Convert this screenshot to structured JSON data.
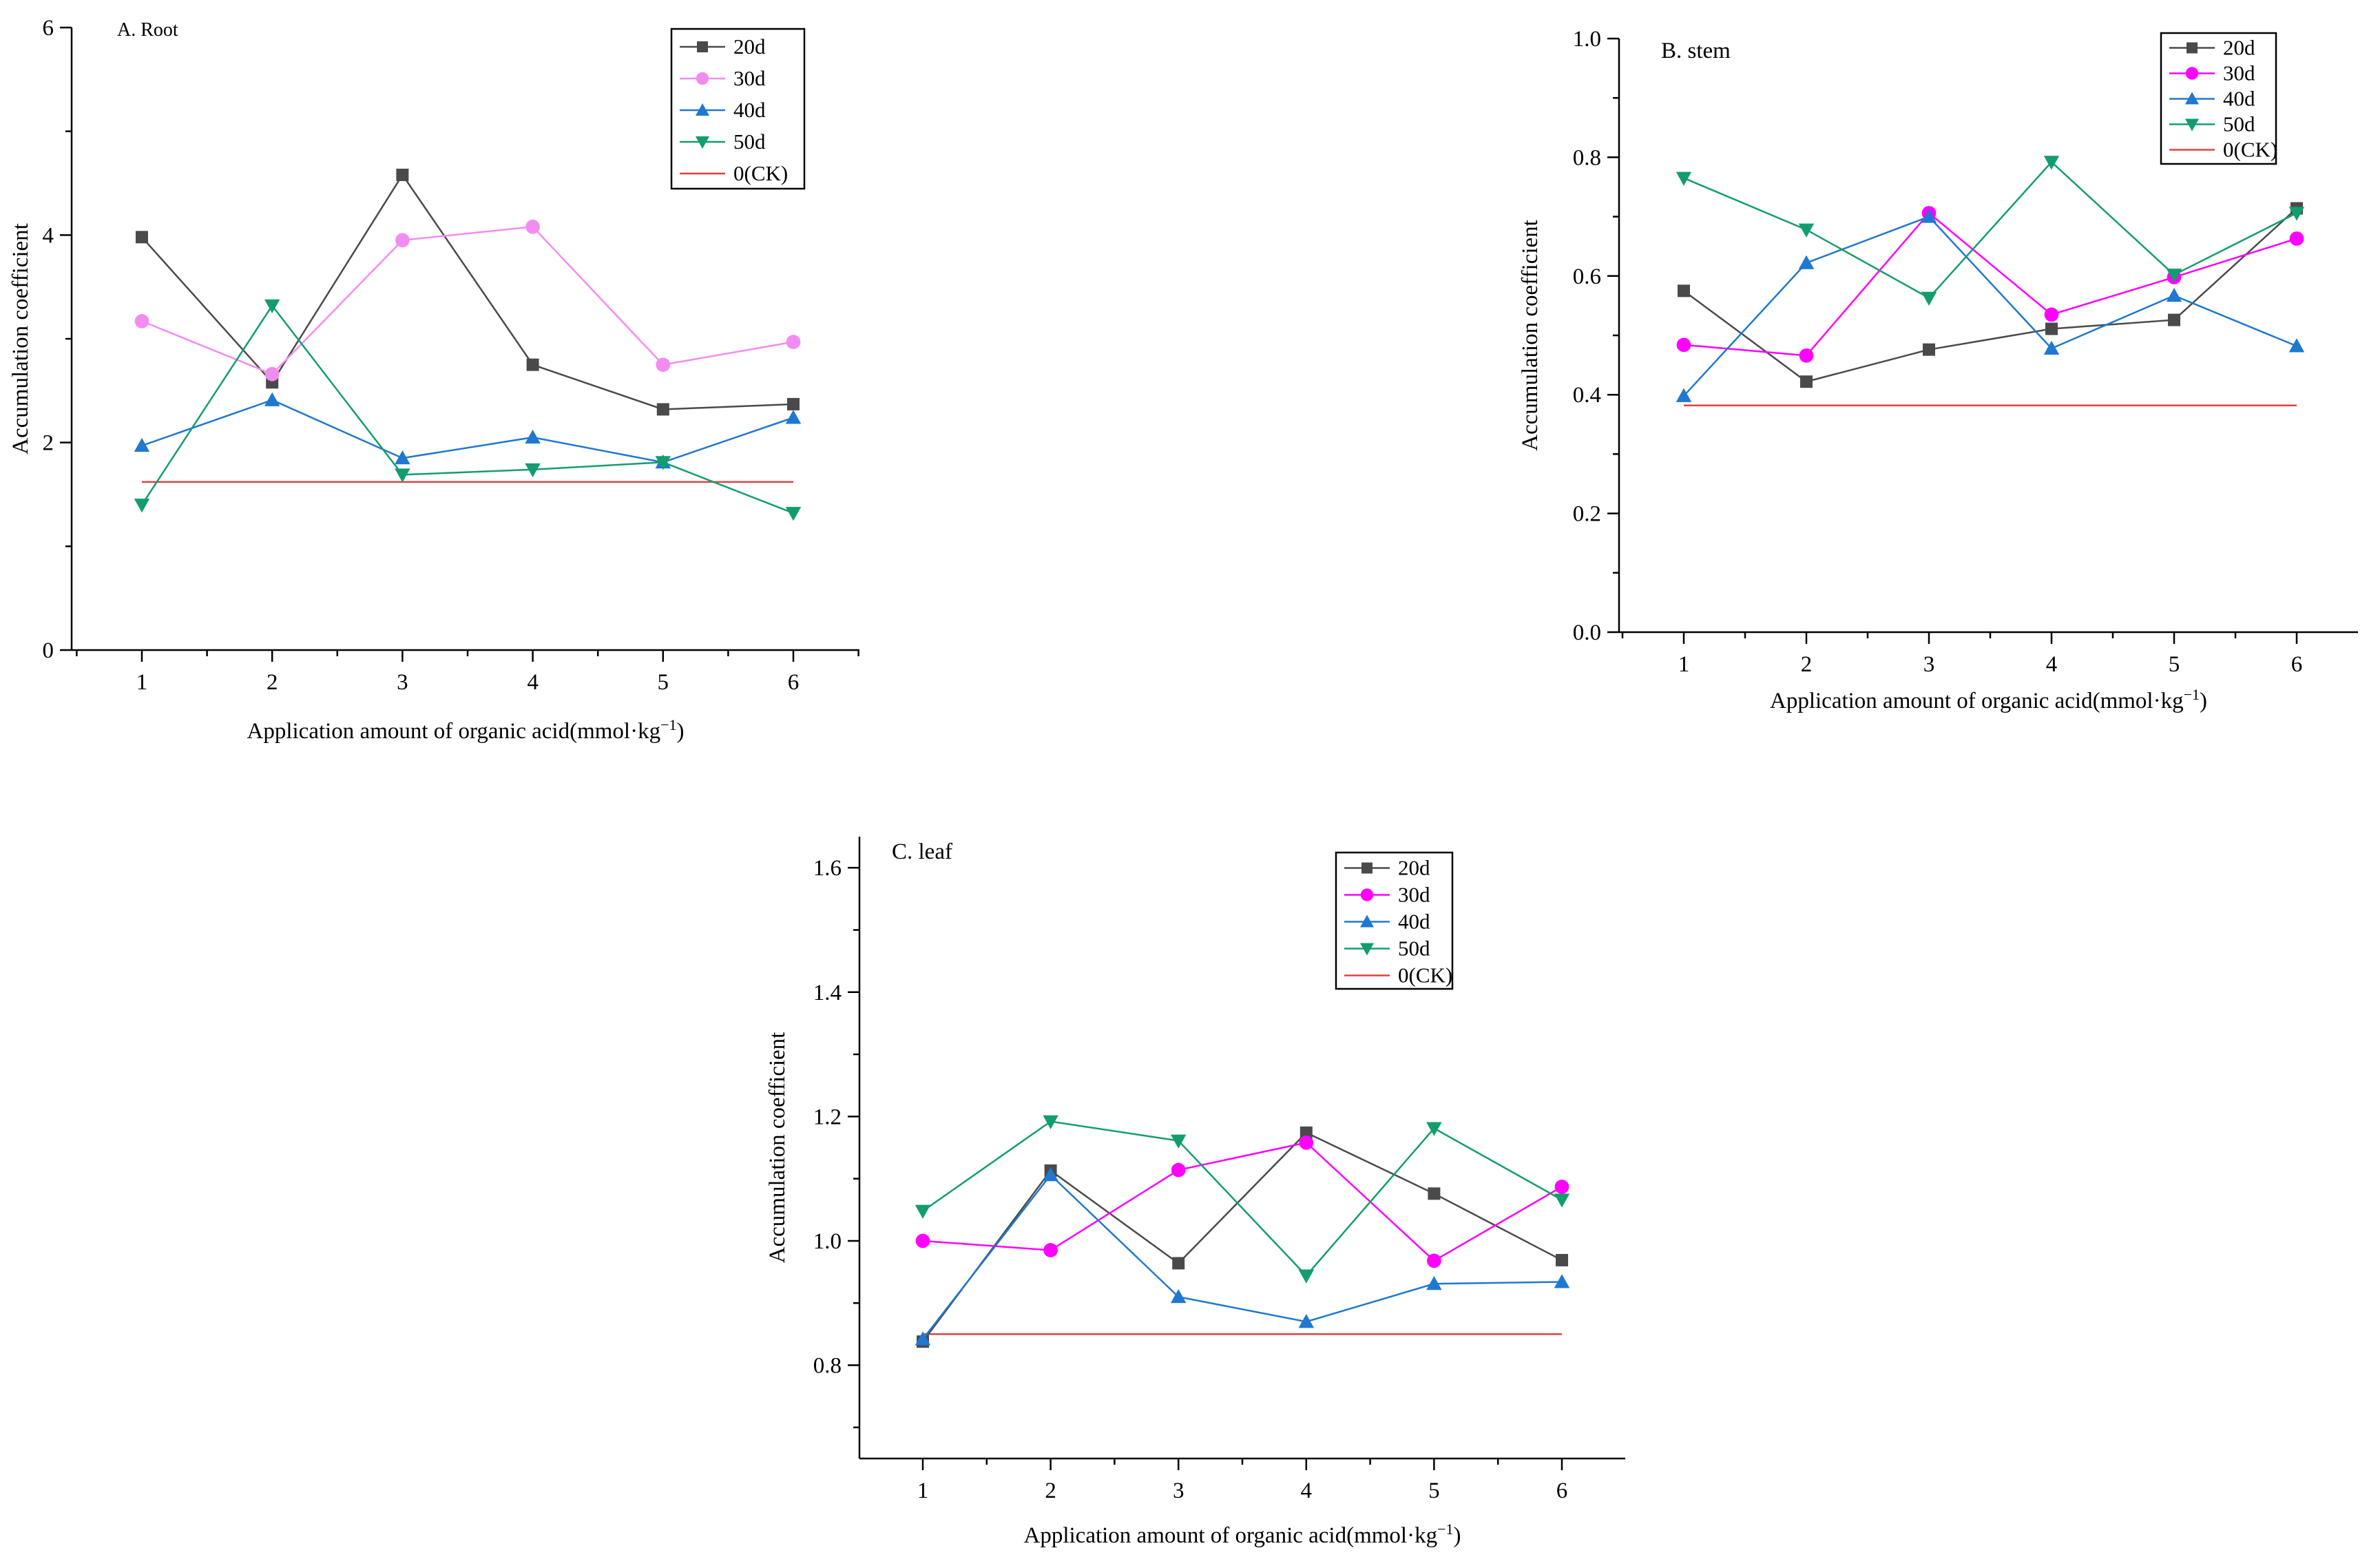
{
  "chart_data": [
    {
      "type": "line",
      "title": "A. Root",
      "xlabel": "Application amount of organic acid(mmol·kg",
      "xlabel_sup": "−1",
      "xlabel_end": ")",
      "ylabel": "Accumulation coefficient",
      "categories": [
        "1",
        "2",
        "3",
        "4",
        "5",
        "6"
      ],
      "x": [
        1,
        2,
        3,
        4,
        5,
        6
      ],
      "ylim": [
        0,
        6
      ],
      "yticks": [
        0,
        2,
        4,
        6
      ],
      "ytick_labels": [
        "0",
        "2",
        "4",
        "6"
      ],
      "series": [
        {
          "name": "20d",
          "color": "#4a4a4a",
          "marker": "square",
          "values": [
            3.98,
            2.58,
            4.58,
            2.75,
            2.32,
            2.37
          ]
        },
        {
          "name": "30d",
          "color": "#f28cf2",
          "marker": "circle",
          "values": [
            3.17,
            2.66,
            3.95,
            4.08,
            2.75,
            2.97
          ]
        },
        {
          "name": "40d",
          "color": "#1f78d1",
          "marker": "triangle-up",
          "values": [
            1.97,
            2.41,
            1.85,
            2.05,
            1.81,
            2.24
          ]
        },
        {
          "name": "50d",
          "color": "#139d6e",
          "marker": "triangle-down",
          "values": [
            1.4,
            3.32,
            1.69,
            1.74,
            1.81,
            1.32
          ]
        }
      ],
      "reference": {
        "name": "0(CK)",
        "color": "#e04040",
        "value": 1.62
      }
    },
    {
      "type": "line",
      "title": "B. stem",
      "xlabel": "Application amount of organic acid(mmol·kg",
      "xlabel_sup": "−1",
      "xlabel_end": ")",
      "ylabel": "Accumulation coefficient",
      "categories": [
        "1",
        "2",
        "3",
        "4",
        "5",
        "6"
      ],
      "x": [
        1,
        2,
        3,
        4,
        5,
        6
      ],
      "ylim": [
        0,
        1.0
      ],
      "yticks": [
        0,
        0.2,
        0.4,
        0.6,
        0.8,
        1.0
      ],
      "ytick_labels": [
        "0.0",
        "0.2",
        "0.4",
        "0.6",
        "0.8",
        "1.0"
      ],
      "series": [
        {
          "name": "20d",
          "color": "#4a4a4a",
          "marker": "square",
          "values": [
            0.575,
            0.422,
            0.476,
            0.511,
            0.526,
            0.714
          ]
        },
        {
          "name": "30d",
          "color": "#ff00ff",
          "marker": "circle",
          "values": [
            0.484,
            0.466,
            0.706,
            0.535,
            0.598,
            0.663
          ]
        },
        {
          "name": "40d",
          "color": "#1f78d1",
          "marker": "triangle-up",
          "values": [
            0.398,
            0.622,
            0.7,
            0.478,
            0.567,
            0.482
          ]
        },
        {
          "name": "50d",
          "color": "#139d6e",
          "marker": "triangle-down",
          "values": [
            0.765,
            0.678,
            0.563,
            0.792,
            0.602,
            0.706
          ]
        }
      ],
      "reference": {
        "name": "0(CK)",
        "color": "#e04040",
        "value": 0.382
      }
    },
    {
      "type": "line",
      "title": "C. leaf",
      "xlabel": "Application amount of organic acid(mmol·kg",
      "xlabel_sup": "−1",
      "xlabel_end": ")",
      "ylabel": "Accumulation coefficient",
      "categories": [
        "1",
        "2",
        "3",
        "4",
        "5",
        "6"
      ],
      "x": [
        1,
        2,
        3,
        4,
        5,
        6
      ],
      "ylim": [
        0.65,
        1.65
      ],
      "yticks": [
        0.8,
        1.0,
        1.2,
        1.4,
        1.6
      ],
      "ytick_labels": [
        "0.8",
        "1.0",
        "1.2",
        "1.4",
        "1.6"
      ],
      "series": [
        {
          "name": "20d",
          "color": "#4a4a4a",
          "marker": "square",
          "values": [
            0.838,
            1.113,
            0.964,
            1.174,
            1.076,
            0.969
          ]
        },
        {
          "name": "30d",
          "color": "#ff00ff",
          "marker": "circle",
          "values": [
            1.0,
            0.985,
            1.114,
            1.158,
            0.968,
            1.087
          ]
        },
        {
          "name": "40d",
          "color": "#1f78d1",
          "marker": "triangle-up",
          "values": [
            0.842,
            1.106,
            0.91,
            0.87,
            0.931,
            0.934
          ]
        },
        {
          "name": "50d",
          "color": "#139d6e",
          "marker": "triangle-down",
          "values": [
            1.048,
            1.192,
            1.161,
            0.944,
            1.181,
            1.066
          ]
        }
      ],
      "reference": {
        "name": "0(CK)",
        "color": "#e04040",
        "value": 0.85
      }
    }
  ]
}
